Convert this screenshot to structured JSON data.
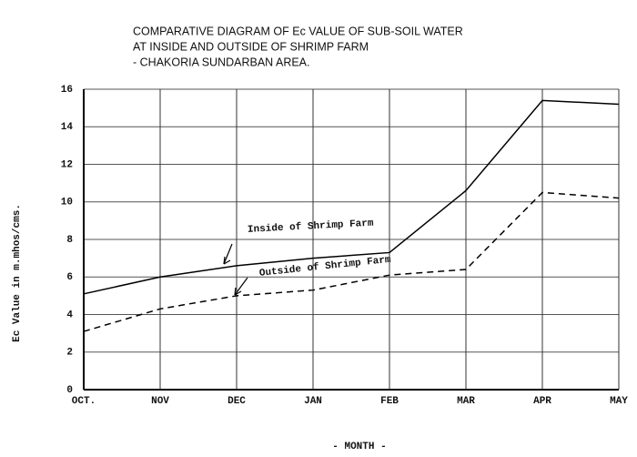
{
  "chart_data": {
    "type": "line",
    "title": [
      "COMPARATIVE DIAGRAM OF Ec VALUE OF SUB-SOIL WATER",
      "AT INSIDE AND OUTSIDE OF SHRIMP FARM",
      "- CHAKORIA SUNDARBAN AREA."
    ],
    "xlabel": "- MONTH -",
    "ylabel": "Ec Value in m.mhos/cms.",
    "categories": [
      "OCT.",
      "NOV",
      "DEC",
      "JAN",
      "FEB",
      "MAR",
      "APR",
      "MAY"
    ],
    "series": [
      {
        "name": "Inside of Shrimp Farm",
        "color": "#000000",
        "style": "solid",
        "values": [
          5.1,
          6.0,
          6.6,
          7.0,
          7.3,
          10.6,
          15.4,
          15.2
        ]
      },
      {
        "name": "Outside of Shrimp Farm",
        "color": "#000000",
        "style": "dashed",
        "values": [
          3.1,
          4.3,
          5.0,
          5.3,
          6.1,
          6.4,
          10.5,
          10.2
        ]
      }
    ],
    "ylim": [
      0,
      16
    ],
    "yticks": [
      0,
      2,
      4,
      6,
      8,
      10,
      12,
      14,
      16
    ],
    "grid": true
  }
}
